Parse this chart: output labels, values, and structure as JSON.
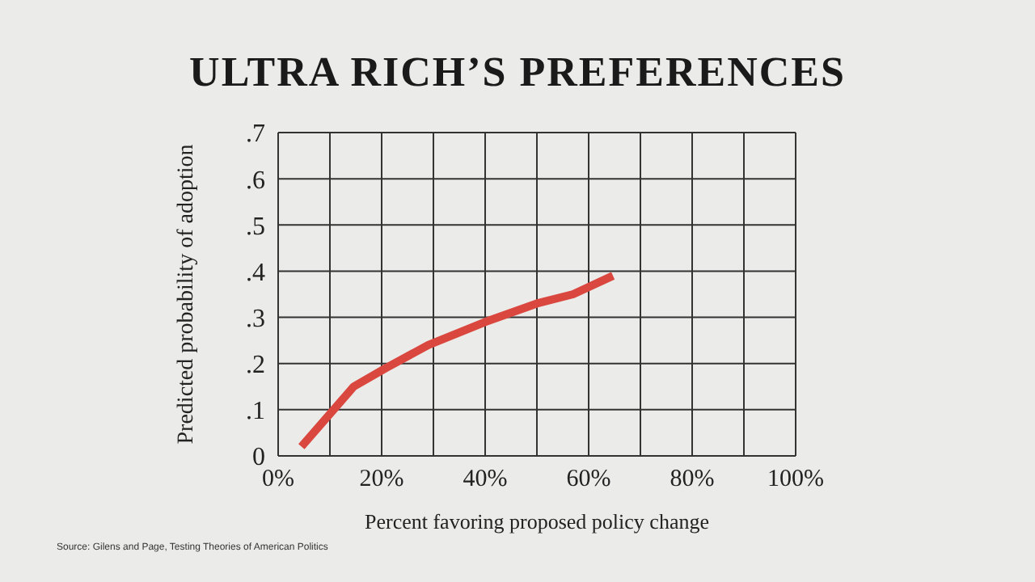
{
  "chart_data": {
    "type": "line",
    "title": "ULTRA RICH’S PREFERENCES",
    "xlabel": "Percent favoring proposed policy change",
    "ylabel": "Predicted probability of adoption",
    "annotations": [
      "Source: Gilens and Page, Testing Theories of American Politics"
    ],
    "series": [
      {
        "color": "#d9473f",
        "x": [
          4.5,
          14.6,
          20.8,
          29,
          40,
          50,
          57,
          64.7
        ],
        "values": [
          0.02,
          0.15,
          0.19,
          0.24,
          0.29,
          0.33,
          0.35,
          0.39
        ]
      }
    ],
    "xlim": [
      0,
      100
    ],
    "xticks": [
      {
        "value": 0,
        "label": "0%"
      },
      {
        "value": 10,
        "label": null
      },
      {
        "value": 20,
        "label": "20%"
      },
      {
        "value": 30,
        "label": null
      },
      {
        "value": 40,
        "label": "40%"
      },
      {
        "value": 50,
        "label": null
      },
      {
        "value": 60,
        "label": "60%"
      },
      {
        "value": 70,
        "label": null
      },
      {
        "value": 80,
        "label": "80%"
      },
      {
        "value": 90,
        "label": null
      },
      {
        "value": 100,
        "label": "100%"
      }
    ],
    "ylim": [
      0,
      0.7
    ],
    "yticks": [
      {
        "value": 0,
        "label": "0"
      },
      {
        "value": 0.1,
        "label": ".1"
      },
      {
        "value": 0.2,
        "label": ".2"
      },
      {
        "value": 0.3,
        "label": ".3"
      },
      {
        "value": 0.4,
        "label": ".4"
      },
      {
        "value": 0.5,
        "label": ".5"
      },
      {
        "value": 0.6,
        "label": ".6"
      },
      {
        "value": 0.7,
        "label": ".7"
      }
    ],
    "grid": true,
    "marker": "none",
    "line_style": "solid"
  }
}
